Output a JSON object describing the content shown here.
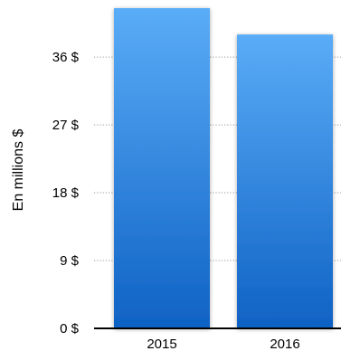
{
  "chart_data": {
    "type": "bar",
    "categories": [
      "2015",
      "2016"
    ],
    "values": [
      42.5,
      39.0
    ],
    "title": "",
    "xlabel": "",
    "ylabel": "En millions $",
    "ylim": [
      0,
      45
    ],
    "yticks": [
      {
        "value": 0,
        "label": "0 $"
      },
      {
        "value": 9,
        "label": "9 $"
      },
      {
        "value": 18,
        "label": "18 $"
      },
      {
        "value": 27,
        "label": "27 $"
      },
      {
        "value": 36,
        "label": "36 $"
      }
    ],
    "grid": true,
    "legend": "none",
    "colors": {
      "bar_top": "#5aacf7",
      "bar_bottom": "#0f62c4",
      "grid": "#9a9a9a",
      "axis": "#000000"
    }
  }
}
